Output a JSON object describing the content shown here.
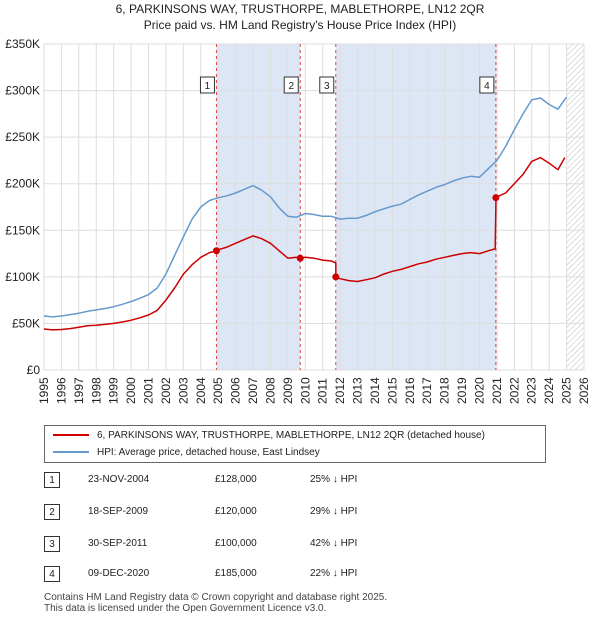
{
  "title": {
    "line1": "6, PARKINSONS WAY, TRUSTHORPE, MABLETHORPE, LN12 2QR",
    "line2": "Price paid vs. HM Land Registry's House Price Index (HPI)"
  },
  "chart_data": {
    "type": "line",
    "title": "6, PARKINSONS WAY, TRUSTHORPE, MABLETHORPE, LN12 2QR — Price paid vs. HM Land Registry's House Price Index (HPI)",
    "xlim": [
      1995,
      2026
    ],
    "ylim": [
      0,
      350000
    ],
    "x_ticks": [
      "1995",
      "1996",
      "1997",
      "1998",
      "1999",
      "2000",
      "2001",
      "2002",
      "2003",
      "2004",
      "2005",
      "2006",
      "2007",
      "2008",
      "2009",
      "2010",
      "2011",
      "2012",
      "2013",
      "2014",
      "2015",
      "2016",
      "2017",
      "2018",
      "2019",
      "2020",
      "2021",
      "2022",
      "2023",
      "2024",
      "2025",
      "2026"
    ],
    "y_ticks": [
      {
        "value": 0,
        "label": "£0"
      },
      {
        "value": 50000,
        "label": "£50K"
      },
      {
        "value": 100000,
        "label": "£100K"
      },
      {
        "value": 150000,
        "label": "£150K"
      },
      {
        "value": 200000,
        "label": "£200K"
      },
      {
        "value": 250000,
        "label": "£250K"
      },
      {
        "value": 300000,
        "label": "£300K"
      },
      {
        "value": 350000,
        "label": "£350K"
      }
    ],
    "colors": {
      "property": "#cc0000",
      "hpi": "#6699cc",
      "shade": "#dde6f5",
      "vline": "#dd4444",
      "grid": "#dddddd"
    },
    "series": [
      {
        "name": "6, PARKINSONS WAY, TRUSTHORPE, MABLETHORPE, LN12 2QR (detached house)",
        "key": "property",
        "x": [
          1995.0,
          1995.5,
          1996.0,
          1996.5,
          1997.0,
          1997.5,
          1998.0,
          1998.5,
          1999.0,
          1999.5,
          2000.0,
          2000.5,
          2001.0,
          2001.5,
          2002.0,
          2002.5,
          2003.0,
          2003.5,
          2004.0,
          2004.5,
          2004.9,
          2005.0,
          2005.5,
          2006.0,
          2006.5,
          2007.0,
          2007.5,
          2008.0,
          2008.5,
          2009.0,
          2009.5,
          2009.7,
          2010.0,
          2010.5,
          2011.0,
          2011.5,
          2011.75,
          2011.76,
          2012.0,
          2012.5,
          2013.0,
          2013.5,
          2014.0,
          2014.5,
          2015.0,
          2015.5,
          2016.0,
          2016.5,
          2017.0,
          2017.5,
          2018.0,
          2018.5,
          2019.0,
          2019.5,
          2020.0,
          2020.5,
          2020.9,
          2020.95,
          2021.0,
          2021.5,
          2022.0,
          2022.5,
          2023.0,
          2023.5,
          2024.0,
          2024.5,
          2024.9
        ],
        "values": [
          44000,
          43000,
          43500,
          44500,
          46000,
          47500,
          48000,
          49000,
          50000,
          51500,
          53500,
          56000,
          59000,
          64000,
          75000,
          88000,
          103000,
          113000,
          121000,
          126000,
          128000,
          129000,
          132000,
          136000,
          140000,
          144000,
          141000,
          136000,
          128000,
          120000,
          121000,
          120000,
          121000,
          120000,
          118000,
          117000,
          115000,
          100000,
          98000,
          96000,
          95000,
          97000,
          99000,
          103000,
          106000,
          108000,
          111000,
          114000,
          116000,
          119000,
          121000,
          123000,
          125000,
          126000,
          125000,
          128000,
          130000,
          185000,
          186000,
          190000,
          200000,
          210000,
          224000,
          228000,
          222000,
          215000,
          228000
        ]
      },
      {
        "name": "HPI: Average price, detached house, East Lindsey",
        "key": "hpi",
        "x": [
          1995.0,
          1995.5,
          1996.0,
          1996.5,
          1997.0,
          1997.5,
          1998.0,
          1998.5,
          1999.0,
          1999.5,
          2000.0,
          2000.5,
          2001.0,
          2001.5,
          2002.0,
          2002.5,
          2003.0,
          2003.5,
          2004.0,
          2004.5,
          2005.0,
          2005.5,
          2006.0,
          2006.5,
          2007.0,
          2007.5,
          2008.0,
          2008.5,
          2009.0,
          2009.5,
          2010.0,
          2010.5,
          2011.0,
          2011.5,
          2012.0,
          2012.5,
          2013.0,
          2013.5,
          2014.0,
          2014.5,
          2015.0,
          2015.5,
          2016.0,
          2016.5,
          2017.0,
          2017.5,
          2018.0,
          2018.5,
          2019.0,
          2019.5,
          2020.0,
          2020.5,
          2021.0,
          2021.5,
          2022.0,
          2022.5,
          2023.0,
          2023.5,
          2024.0,
          2024.5,
          2025.0
        ],
        "values": [
          58000,
          57000,
          58000,
          59500,
          61000,
          63000,
          64500,
          66000,
          68000,
          70500,
          73500,
          77000,
          81000,
          88000,
          103000,
          123000,
          143000,
          162000,
          175000,
          182000,
          185000,
          187000,
          190000,
          194000,
          198000,
          193000,
          186000,
          174000,
          165000,
          164000,
          168000,
          167000,
          165000,
          165000,
          162000,
          163000,
          163000,
          166000,
          170000,
          173000,
          176000,
          178000,
          183000,
          188000,
          192000,
          196000,
          199000,
          203000,
          206000,
          208000,
          207000,
          216000,
          225000,
          240000,
          258000,
          275000,
          290000,
          292000,
          285000,
          280000,
          293000
        ]
      }
    ],
    "sales": [
      {
        "n": "1",
        "x": 2004.9,
        "value": 128000
      },
      {
        "n": "2",
        "x": 2009.71,
        "value": 120000
      },
      {
        "n": "3",
        "x": 2011.75,
        "value": 100000
      },
      {
        "n": "4",
        "x": 2020.94,
        "value": 185000
      }
    ],
    "shaded_ranges": [
      [
        2004.9,
        2009.71
      ],
      [
        2011.75,
        2020.94
      ]
    ],
    "hatch_from": 2025.0
  },
  "legend": {
    "property_label": "6, PARKINSONS WAY, TRUSTHORPE, MABLETHORPE, LN12 2QR (detached house)",
    "hpi_label": "HPI: Average price, detached house, East Lindsey"
  },
  "sales_table": [
    {
      "n": "1",
      "date": "23-NOV-2004",
      "price": "£128,000",
      "hpi": "25% ↓ HPI"
    },
    {
      "n": "2",
      "date": "18-SEP-2009",
      "price": "£120,000",
      "hpi": "29% ↓ HPI"
    },
    {
      "n": "3",
      "date": "30-SEP-2011",
      "price": "£100,000",
      "hpi": "42% ↓ HPI"
    },
    {
      "n": "4",
      "date": "09-DEC-2020",
      "price": "£185,000",
      "hpi": "22% ↓ HPI"
    }
  ],
  "footer": {
    "line1": "Contains HM Land Registry data © Crown copyright and database right 2025.",
    "line2": "This data is licensed under the Open Government Licence v3.0."
  }
}
